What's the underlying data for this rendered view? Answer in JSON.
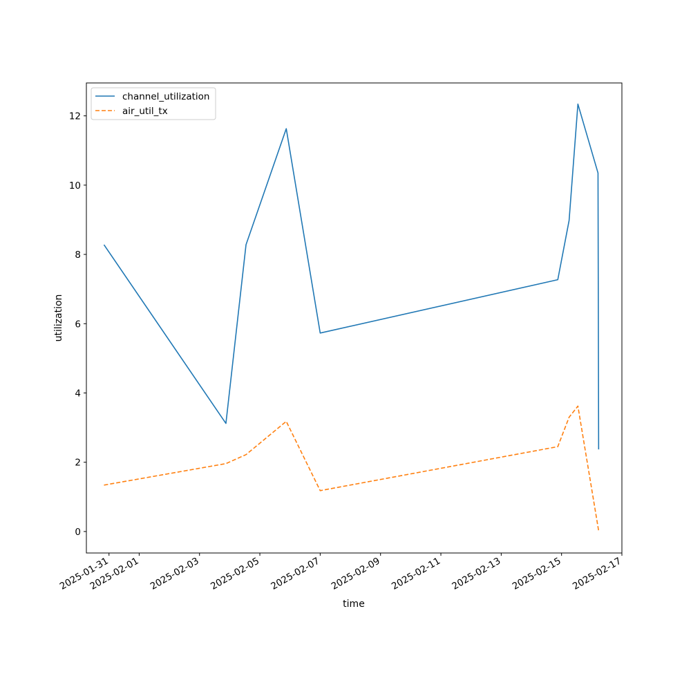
{
  "chart_data": {
    "type": "line",
    "title": "",
    "xlabel": "time",
    "ylabel": "utilization",
    "x_axis_type": "date",
    "xlim": [
      "2025-01-30T06:00",
      "2025-02-17T00:00"
    ],
    "ylim": [
      -0.62,
      12.95
    ],
    "x_ticks": [
      "2025-01-31",
      "2025-02-01",
      "2025-02-03",
      "2025-02-05",
      "2025-02-07",
      "2025-02-09",
      "2025-02-11",
      "2025-02-13",
      "2025-02-15",
      "2025-02-17"
    ],
    "y_ticks": [
      0,
      2,
      4,
      6,
      8,
      10,
      12
    ],
    "y_tick_labels": [
      "0",
      "2",
      "4",
      "6",
      "8",
      "10",
      "12"
    ],
    "grid": false,
    "legend_position": "upper-left",
    "series": [
      {
        "name": "channel_utilization",
        "color": "#1f77b4",
        "style": "solid",
        "points": [
          [
            "2025-01-30T20:00",
            8.28
          ],
          [
            "2025-02-03T21:00",
            3.12
          ],
          [
            "2025-02-04T13:00",
            8.28
          ],
          [
            "2025-02-05T21:00",
            11.63
          ],
          [
            "2025-02-07T00:00",
            5.73
          ],
          [
            "2025-02-14T21:00",
            7.27
          ],
          [
            "2025-02-15T06:00",
            8.98
          ],
          [
            "2025-02-15T13:00",
            12.34
          ],
          [
            "2025-02-16T05:00",
            10.35
          ],
          [
            "2025-02-16T05:30",
            2.37
          ]
        ]
      },
      {
        "name": "air_util_tx",
        "color": "#ff7f0e",
        "style": "dashed",
        "points": [
          [
            "2025-01-30T20:00",
            1.34
          ],
          [
            "2025-02-03T21:00",
            1.96
          ],
          [
            "2025-02-04T13:00",
            2.22
          ],
          [
            "2025-02-05T21:00",
            3.18
          ],
          [
            "2025-02-07T00:00",
            1.18
          ],
          [
            "2025-02-14T21:00",
            2.45
          ],
          [
            "2025-02-15T06:00",
            3.3
          ],
          [
            "2025-02-15T13:00",
            3.62
          ],
          [
            "2025-02-16T05:30",
            0.02
          ]
        ]
      }
    ]
  }
}
